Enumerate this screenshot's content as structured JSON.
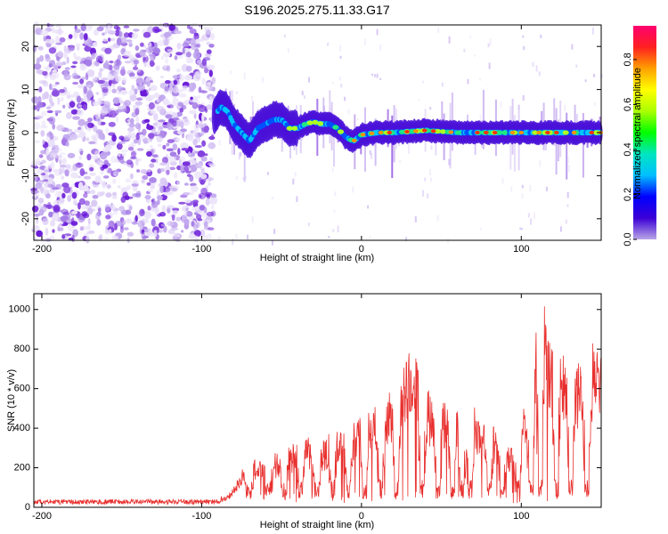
{
  "title": "S196.2025.275.11.33.G17",
  "chart_data": [
    {
      "type": "heatmap",
      "xlabel": "Height of straight line (km)",
      "ylabel": "Frequency (Hz)",
      "xlim": [
        -205,
        150
      ],
      "ylim": [
        -25,
        25
      ],
      "xticks": [
        -200,
        -100,
        0,
        100
      ],
      "xtick_labels": [
        "-200",
        "-100",
        "0",
        "100"
      ],
      "yticks": [
        -20,
        -10,
        0,
        10,
        20
      ],
      "ytick_labels": [
        "-20",
        "-10",
        "0",
        "10",
        "20"
      ],
      "colorbar": {
        "label": "Normalized spectral amplitude",
        "range": [
          0.0,
          0.95
        ],
        "ticks": [
          0.0,
          0.2,
          0.4,
          0.6,
          0.8
        ],
        "tick_labels": [
          "0.0",
          "0.2",
          "0.4",
          "0.6",
          "0.8"
        ],
        "colors": [
          "#b8a6e6",
          "#3b00d6",
          "#0000ff",
          "#00bfff",
          "#00e5c0",
          "#00ff00",
          "#aaff00",
          "#ffff00",
          "#ffa000",
          "#ff2020",
          "#ff0070"
        ]
      },
      "noise_region": {
        "x_from": -205,
        "x_to": -92
      },
      "frequency_track": [
        {
          "x": -92,
          "y": 4
        },
        {
          "x": -88,
          "y": 6
        },
        {
          "x": -84,
          "y": 5
        },
        {
          "x": -80,
          "y": 2
        },
        {
          "x": -75,
          "y": 0
        },
        {
          "x": -70,
          "y": -2
        },
        {
          "x": -65,
          "y": 1
        },
        {
          "x": -60,
          "y": 2
        },
        {
          "x": -55,
          "y": 3
        },
        {
          "x": -50,
          "y": 3
        },
        {
          "x": -45,
          "y": 1
        },
        {
          "x": -40,
          "y": 1
        },
        {
          "x": -35,
          "y": 2
        },
        {
          "x": -30,
          "y": 2.5
        },
        {
          "x": -25,
          "y": 2
        },
        {
          "x": -20,
          "y": 2
        },
        {
          "x": -15,
          "y": 1
        },
        {
          "x": -10,
          "y": -1
        },
        {
          "x": -5,
          "y": -2
        },
        {
          "x": 0,
          "y": -0.5
        },
        {
          "x": 10,
          "y": 0
        },
        {
          "x": 20,
          "y": 0
        },
        {
          "x": 40,
          "y": 0.5
        },
        {
          "x": 60,
          "y": 0
        },
        {
          "x": 80,
          "y": 0
        },
        {
          "x": 100,
          "y": 0
        },
        {
          "x": 120,
          "y": 0
        },
        {
          "x": 150,
          "y": 0
        }
      ]
    },
    {
      "type": "line",
      "xlabel": "Height of straight line (km)",
      "ylabel": "SNR (10 * v/v)",
      "xlim": [
        -205,
        150
      ],
      "ylim": [
        0,
        1080
      ],
      "xticks": [
        -200,
        -100,
        0,
        100
      ],
      "xtick_labels": [
        "-200",
        "-100",
        "0",
        "100"
      ],
      "yticks": [
        0,
        200,
        400,
        600,
        800,
        1000
      ],
      "ytick_labels": [
        "0",
        "200",
        "400",
        "600",
        "800",
        "1000"
      ],
      "color": "#e8302e",
      "envelope": [
        {
          "x": -205,
          "y": 30
        },
        {
          "x": -90,
          "y": 30
        },
        {
          "x": -82,
          "y": 80
        },
        {
          "x": -75,
          "y": 180
        },
        {
          "x": -65,
          "y": 240
        },
        {
          "x": -55,
          "y": 260
        },
        {
          "x": -45,
          "y": 300
        },
        {
          "x": -35,
          "y": 340
        },
        {
          "x": -25,
          "y": 320
        },
        {
          "x": -15,
          "y": 400
        },
        {
          "x": -5,
          "y": 420
        },
        {
          "x": 5,
          "y": 460
        },
        {
          "x": 15,
          "y": 560
        },
        {
          "x": 25,
          "y": 650
        },
        {
          "x": 30,
          "y": 800
        },
        {
          "x": 35,
          "y": 700
        },
        {
          "x": 40,
          "y": 600
        },
        {
          "x": 45,
          "y": 520
        },
        {
          "x": 50,
          "y": 560
        },
        {
          "x": 55,
          "y": 500
        },
        {
          "x": 60,
          "y": 480
        },
        {
          "x": 65,
          "y": 420
        },
        {
          "x": 70,
          "y": 500
        },
        {
          "x": 75,
          "y": 380
        },
        {
          "x": 80,
          "y": 450
        },
        {
          "x": 85,
          "y": 360
        },
        {
          "x": 90,
          "y": 330
        },
        {
          "x": 95,
          "y": 280
        },
        {
          "x": 100,
          "y": 450
        },
        {
          "x": 105,
          "y": 600
        },
        {
          "x": 110,
          "y": 900
        },
        {
          "x": 113,
          "y": 1050
        },
        {
          "x": 118,
          "y": 820
        },
        {
          "x": 125,
          "y": 760
        },
        {
          "x": 130,
          "y": 700
        },
        {
          "x": 135,
          "y": 720
        },
        {
          "x": 140,
          "y": 660
        },
        {
          "x": 145,
          "y": 800
        },
        {
          "x": 150,
          "y": 780
        }
      ],
      "dropouts": [
        -70,
        -58,
        -48,
        -38,
        -28,
        -18,
        -8,
        2,
        12,
        22,
        38,
        48,
        57,
        63,
        68,
        80,
        88,
        98,
        106,
        112,
        122,
        131,
        141
      ]
    }
  ]
}
